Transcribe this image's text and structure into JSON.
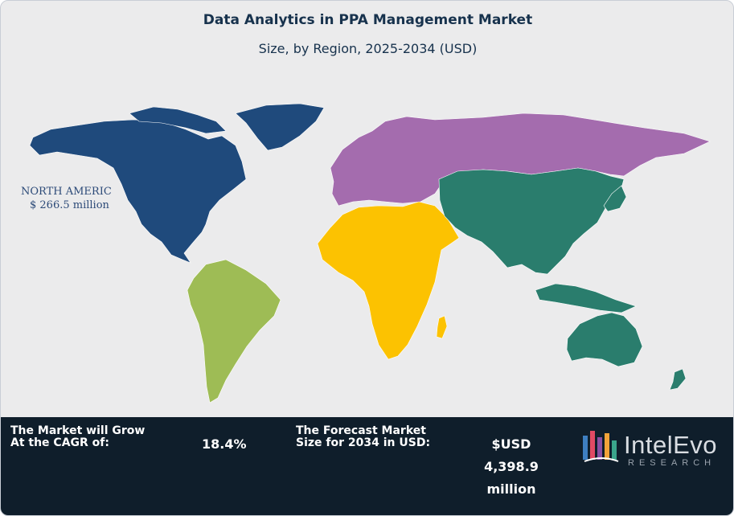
{
  "header": {
    "title": "Data Analytics in PPA Management Market",
    "subtitle": "Size, by Region, 2025-2034 (USD)"
  },
  "map": {
    "regions": [
      {
        "name": "North America",
        "color": "#1f4a7c"
      },
      {
        "name": "South America",
        "color": "#9ebc55"
      },
      {
        "name": "Europe",
        "color": "#a46cae"
      },
      {
        "name": "Middle East & Africa",
        "color": "#fcc201"
      },
      {
        "name": "Asia Pacific",
        "color": "#2a7d6d"
      }
    ],
    "callout": {
      "name": "NORTH AMERICA",
      "value": "$ 266.5 million"
    }
  },
  "footer": {
    "cagr_label_line1": "The Market will Grow",
    "cagr_label_line2": "At the CAGR of:",
    "cagr_value": "18.4%",
    "size_label_line1": "The Forecast Market",
    "size_label_line2": "Size for 2034 in USD:",
    "size_value_line1": "$USD",
    "size_value_line2": "4,398.9",
    "size_value_line3": "million"
  },
  "logo": {
    "name": "IntelEvo",
    "tagline": "RESEARCH"
  }
}
